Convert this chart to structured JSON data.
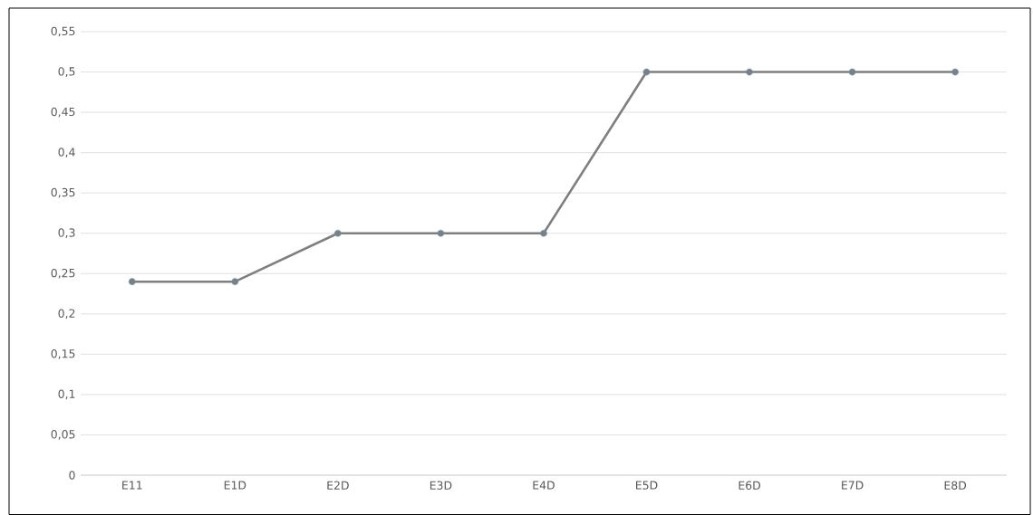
{
  "chart_data": {
    "type": "line",
    "categories": [
      "E11",
      "E1D",
      "E2D",
      "E3D",
      "E4D",
      "E5D",
      "E6D",
      "E7D",
      "E8D"
    ],
    "series": [
      {
        "color": "#7f7f7f",
        "values": [
          0.24,
          0.24,
          0.3,
          0.3,
          0.3,
          0.5,
          0.5,
          0.5,
          0.5
        ]
      }
    ],
    "ylim": [
      0,
      0.55
    ],
    "yticks": [
      0,
      {
        "value": 0.05,
        "label": "0,05"
      },
      {
        "value": 0.1,
        "label": "0,1"
      },
      {
        "value": 0.15,
        "label": "0,15"
      },
      {
        "value": 0.2,
        "label": "0,2"
      },
      {
        "value": 0.25,
        "label": "0,25"
      },
      {
        "value": 0.3,
        "label": "0,3"
      },
      {
        "value": 0.35,
        "label": "0,35"
      },
      {
        "value": 0.4,
        "label": "0,4"
      },
      {
        "value": 0.45,
        "label": "0,45"
      },
      {
        "value": 0.5,
        "label": "0,5"
      },
      {
        "value": 0.55,
        "label": "0,55"
      }
    ],
    "grid": "y",
    "marker": "circle",
    "legend": false
  }
}
